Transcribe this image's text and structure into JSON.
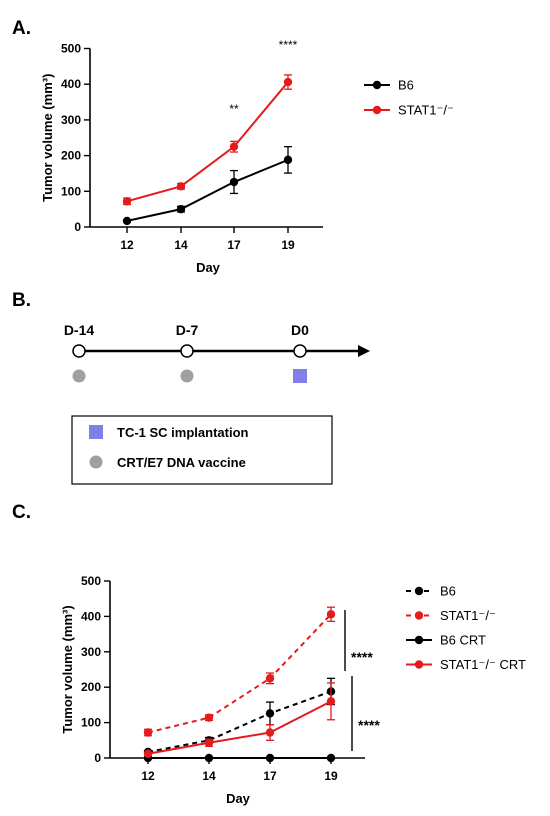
{
  "panels": {
    "A": {
      "label": "A."
    },
    "B": {
      "label": "B."
    },
    "C": {
      "label": "C."
    }
  },
  "timeline": {
    "days": [
      "D-14",
      "D-7",
      "D0"
    ],
    "legend": {
      "implant": "TC-1 SC implantation",
      "vaccine": "CRT/E7 DNA vaccine"
    },
    "colors": {
      "vaccine": "#a0a0a0",
      "implant": "#8080e8"
    }
  },
  "chart_data": [
    {
      "type": "line",
      "xlabel": "Day",
      "ylabel": "Tumor volume (mm³)",
      "ylim": [
        0,
        500
      ],
      "yticks": [
        "0",
        "100",
        "200",
        "300",
        "400",
        "500"
      ],
      "categories": [
        "12",
        "14",
        "17",
        "19"
      ],
      "series": [
        {
          "name": "B6",
          "color": "#000000",
          "dashed": false,
          "values": [
            17,
            50,
            126,
            188
          ],
          "errors": [
            3,
            8,
            32,
            37
          ]
        },
        {
          "name": "STAT1⁻/⁻",
          "color": "#e41a1c",
          "dashed": false,
          "values": [
            72,
            114,
            225,
            406
          ],
          "errors": [
            9,
            8,
            15,
            20
          ]
        }
      ],
      "annotations": [
        {
          "text": "**",
          "category": "17"
        },
        {
          "text": "****",
          "category": "19"
        }
      ],
      "legend_position": "right"
    },
    {
      "type": "line",
      "xlabel": "Day",
      "ylabel": "Tumor volume (mm³)",
      "ylim": [
        0,
        500
      ],
      "yticks": [
        "0",
        "100",
        "200",
        "300",
        "400",
        "500"
      ],
      "categories": [
        "12",
        "14",
        "17",
        "19"
      ],
      "series": [
        {
          "name": "B6",
          "color": "#000000",
          "dashed": true,
          "values": [
            17,
            50,
            126,
            188
          ],
          "errors": [
            3,
            8,
            32,
            37
          ]
        },
        {
          "name": "STAT1⁻/⁻",
          "color": "#e41a1c",
          "dashed": true,
          "values": [
            72,
            114,
            225,
            406
          ],
          "errors": [
            9,
            8,
            15,
            20
          ]
        },
        {
          "name": "B6 CRT",
          "color": "#000000",
          "dashed": false,
          "values": [
            0,
            0,
            0,
            0
          ],
          "errors": [
            0,
            0,
            0,
            0
          ]
        },
        {
          "name": "STAT1⁻/⁻ CRT",
          "color": "#e41a1c",
          "dashed": false,
          "values": [
            12,
            43,
            72,
            160
          ],
          "errors": [
            3,
            10,
            22,
            52
          ]
        }
      ],
      "annotations": [
        {
          "text": "****",
          "between": "STAT1⁻/⁻ vs STAT1⁻/⁻ CRT"
        },
        {
          "text": "****",
          "between": "B6 vs B6 CRT"
        }
      ],
      "legend_position": "right"
    }
  ]
}
